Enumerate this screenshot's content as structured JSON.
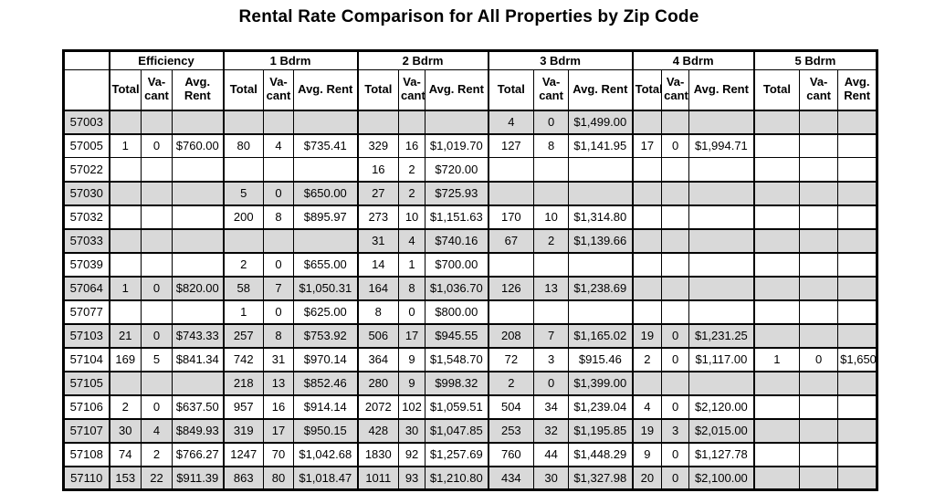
{
  "title": "Rental Rate Comparison for All Properties by Zip Code",
  "colors": {
    "shaded_cell": "#d9d9d9",
    "cell_background": "#ffffff",
    "border": "#000000",
    "text": "#000000"
  },
  "table": {
    "corner_label": "",
    "groups": [
      {
        "label": "Efficiency"
      },
      {
        "label": "1 Bdrm"
      },
      {
        "label": "2 Bdrm"
      },
      {
        "label": "3 Bdrm"
      },
      {
        "label": "4 Bdrm"
      },
      {
        "label": "5 Bdrm"
      }
    ],
    "sub_headers": [
      "Total",
      "Va-cant",
      "Avg. Rent"
    ],
    "rows": [
      {
        "zip": "57003",
        "shaded": true,
        "cells": [
          "",
          "",
          "",
          "",
          "",
          "",
          "",
          "",
          "",
          "4",
          "0",
          "$1,499.00",
          "",
          "",
          "",
          "",
          "",
          ""
        ]
      },
      {
        "zip": "57005",
        "shaded": false,
        "cells": [
          "1",
          "0",
          "$760.00",
          "80",
          "4",
          "$735.41",
          "329",
          "16",
          "$1,019.70",
          "127",
          "8",
          "$1,141.95",
          "17",
          "0",
          "$1,994.71",
          "",
          "",
          ""
        ]
      },
      {
        "zip": "57022",
        "shaded": false,
        "cells": [
          "",
          "",
          "",
          "",
          "",
          "",
          "16",
          "2",
          "$720.00",
          "",
          "",
          "",
          "",
          "",
          "",
          "",
          "",
          ""
        ]
      },
      {
        "zip": "57030",
        "shaded": true,
        "cells": [
          "",
          "",
          "",
          "5",
          "0",
          "$650.00",
          "27",
          "2",
          "$725.93",
          "",
          "",
          "",
          "",
          "",
          "",
          "",
          "",
          ""
        ]
      },
      {
        "zip": "57032",
        "shaded": false,
        "cells": [
          "",
          "",
          "",
          "200",
          "8",
          "$895.97",
          "273",
          "10",
          "$1,151.63",
          "170",
          "10",
          "$1,314.80",
          "",
          "",
          "",
          "",
          "",
          ""
        ]
      },
      {
        "zip": "57033",
        "shaded": true,
        "cells": [
          "",
          "",
          "",
          "",
          "",
          "",
          "31",
          "4",
          "$740.16",
          "67",
          "2",
          "$1,139.66",
          "",
          "",
          "",
          "",
          "",
          ""
        ]
      },
      {
        "zip": "57039",
        "shaded": false,
        "cells": [
          "",
          "",
          "",
          "2",
          "0",
          "$655.00",
          "14",
          "1",
          "$700.00",
          "",
          "",
          "",
          "",
          "",
          "",
          "",
          "",
          ""
        ]
      },
      {
        "zip": "57064",
        "shaded": true,
        "cells": [
          "1",
          "0",
          "$820.00",
          "58",
          "7",
          "$1,050.31",
          "164",
          "8",
          "$1,036.70",
          "126",
          "13",
          "$1,238.69",
          "",
          "",
          "",
          "",
          "",
          ""
        ]
      },
      {
        "zip": "57077",
        "shaded": false,
        "cells": [
          "",
          "",
          "",
          "1",
          "0",
          "$625.00",
          "8",
          "0",
          "$800.00",
          "",
          "",
          "",
          "",
          "",
          "",
          "",
          "",
          ""
        ]
      },
      {
        "zip": "57103",
        "shaded": true,
        "cells": [
          "21",
          "0",
          "$743.33",
          "257",
          "8",
          "$753.92",
          "506",
          "17",
          "$945.55",
          "208",
          "7",
          "$1,165.02",
          "19",
          "0",
          "$1,231.25",
          "",
          "",
          ""
        ]
      },
      {
        "zip": "57104",
        "shaded": false,
        "cells": [
          "169",
          "5",
          "$841.34",
          "742",
          "31",
          "$970.14",
          "364",
          "9",
          "$1,548.70",
          "72",
          "3",
          "$915.46",
          "2",
          "0",
          "$1,117.00",
          "1",
          "0",
          "$1,650"
        ]
      },
      {
        "zip": "57105",
        "shaded": true,
        "cells": [
          "",
          "",
          "",
          "218",
          "13",
          "$852.46",
          "280",
          "9",
          "$998.32",
          "2",
          "0",
          "$1,399.00",
          "",
          "",
          "",
          "",
          "",
          ""
        ]
      },
      {
        "zip": "57106",
        "shaded": false,
        "cells": [
          "2",
          "0",
          "$637.50",
          "957",
          "16",
          "$914.14",
          "2072",
          "102",
          "$1,059.51",
          "504",
          "34",
          "$1,239.04",
          "4",
          "0",
          "$2,120.00",
          "",
          "",
          ""
        ]
      },
      {
        "zip": "57107",
        "shaded": true,
        "cells": [
          "30",
          "4",
          "$849.93",
          "319",
          "17",
          "$950.15",
          "428",
          "30",
          "$1,047.85",
          "253",
          "32",
          "$1,195.85",
          "19",
          "3",
          "$2,015.00",
          "",
          "",
          ""
        ]
      },
      {
        "zip": "57108",
        "shaded": false,
        "cells": [
          "74",
          "2",
          "$766.27",
          "1247",
          "70",
          "$1,042.68",
          "1830",
          "92",
          "$1,257.69",
          "760",
          "44",
          "$1,448.29",
          "9",
          "0",
          "$1,127.78",
          "",
          "",
          ""
        ]
      },
      {
        "zip": "57110",
        "shaded": true,
        "cells": [
          "153",
          "22",
          "$911.39",
          "863",
          "80",
          "$1,018.47",
          "1011",
          "93",
          "$1,210.80",
          "434",
          "30",
          "$1,327.98",
          "20",
          "0",
          "$2,100.00",
          "",
          "",
          ""
        ]
      }
    ]
  }
}
